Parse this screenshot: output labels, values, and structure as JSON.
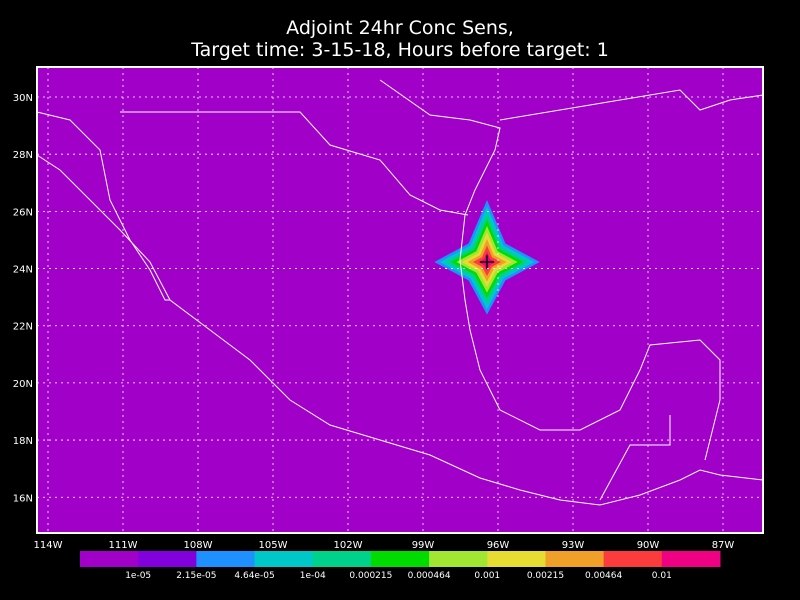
{
  "title": [
    "Adjoint 24hr Conc Sens,",
    "Target time: 3-15-18, Hours before target: 1"
  ],
  "map": {
    "lonlim": [
      -114.44,
      -85.4
    ],
    "latlim": [
      14.75,
      31.05
    ],
    "background": "#a000c8",
    "grid": true,
    "lonticks": [
      {
        "value": -114,
        "label": "114W"
      },
      {
        "value": -111,
        "label": "111W"
      },
      {
        "value": -108,
        "label": "108W"
      },
      {
        "value": -105,
        "label": "105W"
      },
      {
        "value": -102,
        "label": "102W"
      },
      {
        "value": -99,
        "label": "99W"
      },
      {
        "value": -96,
        "label": "96W"
      },
      {
        "value": -93,
        "label": "93W"
      },
      {
        "value": -90,
        "label": "90W"
      },
      {
        "value": -87,
        "label": "87W"
      }
    ],
    "latticks": [
      {
        "value": 30,
        "label": "30N"
      },
      {
        "value": 28,
        "label": "28N"
      },
      {
        "value": 26,
        "label": "26N"
      },
      {
        "value": 24,
        "label": "24N"
      },
      {
        "value": 22,
        "label": "22N"
      },
      {
        "value": 20,
        "label": "20N"
      },
      {
        "value": 18,
        "label": "18N"
      },
      {
        "value": 16,
        "label": "16N"
      }
    ],
    "target": {
      "lon": -96.44,
      "lat": 24.23
    }
  },
  "colorbar": {
    "colors": [
      "#a000c8",
      "#8200dc",
      "#1e90ff",
      "#00c8c8",
      "#00d28c",
      "#00dc00",
      "#a0e632",
      "#e6dc32",
      "#f0a028",
      "#fa3c3c",
      "#f00082"
    ],
    "labels": [
      "1e-05",
      "2.15e-05",
      "4.64e-05",
      "1e-04",
      "0.000215",
      "0.000464",
      "0.001",
      "0.00215",
      "0.00464",
      "0.01"
    ]
  }
}
